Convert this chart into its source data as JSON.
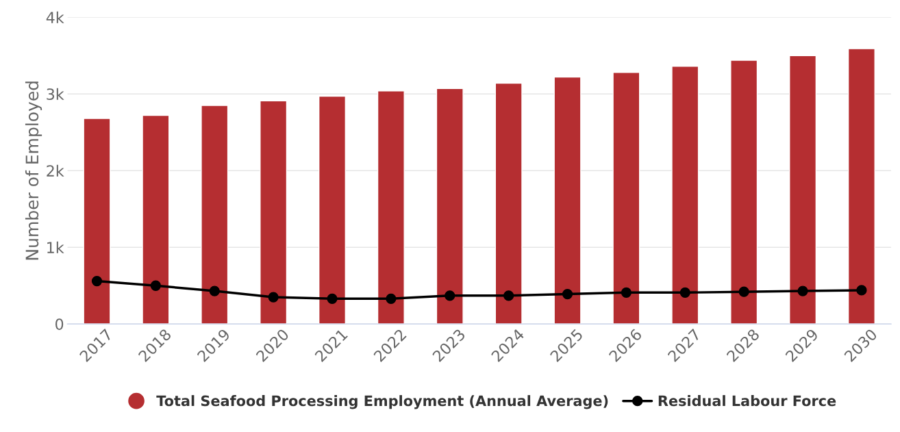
{
  "chart_data": {
    "type": "bar",
    "ylabel": "Number of Employed",
    "categories": [
      "2017",
      "2018",
      "2019",
      "2020",
      "2021",
      "2022",
      "2023",
      "2024",
      "2025",
      "2026",
      "2027",
      "2028",
      "2029",
      "2030"
    ],
    "series": [
      {
        "name": "Total Seafood Processing Employment (Annual Average)",
        "color": "#b52e31",
        "values": [
          2680,
          2720,
          2850,
          2910,
          2970,
          3040,
          3070,
          3140,
          3220,
          3280,
          3360,
          3440,
          3500,
          3590
        ]
      },
      {
        "name": "Residual Labour Force",
        "type": "line",
        "color": "#000000",
        "values": [
          560,
          500,
          430,
          350,
          330,
          330,
          370,
          370,
          390,
          410,
          410,
          420,
          430,
          440
        ]
      }
    ],
    "ylim": [
      0,
      4000
    ],
    "yticks": [
      {
        "value": 0,
        "label": "0"
      },
      {
        "value": 1000,
        "label": "1k"
      },
      {
        "value": 2000,
        "label": "2k"
      },
      {
        "value": 3000,
        "label": "3k"
      },
      {
        "value": 4000,
        "label": "4k"
      }
    ],
    "grid": "y",
    "legend": "bottom",
    "marker": "circle",
    "line_style": "solid"
  }
}
